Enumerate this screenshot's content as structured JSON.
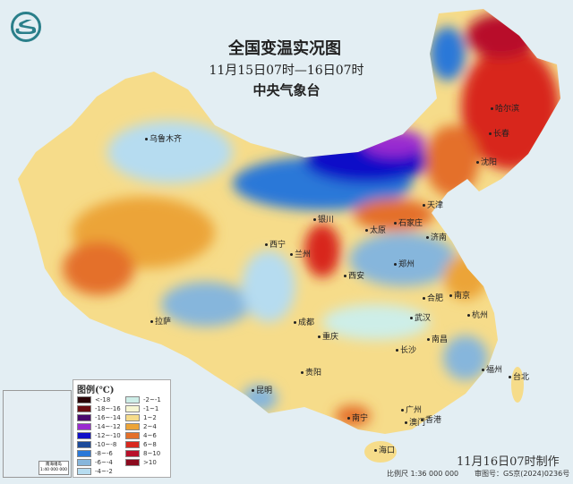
{
  "header": {
    "title": "全国变温实况图",
    "period": "11月15日07时—16日07时",
    "agency": "中央气象台"
  },
  "logo": {
    "icon": "cma-dragon-logo-icon"
  },
  "cities": [
    "乌鲁木齐",
    "哈尔滨",
    "长春",
    "沈阳",
    "银川",
    "太原",
    "石家庄",
    "天津",
    "济南",
    "西宁",
    "兰州",
    "郑州",
    "西安",
    "合肥",
    "南京",
    "杭州",
    "拉萨",
    "成都",
    "武汉",
    "重庆",
    "南昌",
    "长沙",
    "贵阳",
    "昆明",
    "福州",
    "台北",
    "广州",
    "南宁",
    "澳门",
    "香港",
    "海口"
  ],
  "legend": {
    "title": "图例(℃)",
    "items": [
      {
        "label": "<-18",
        "color": "#2a0508"
      },
      {
        "label": "-18~-16",
        "color": "#6b0d12"
      },
      {
        "label": "-16~-14",
        "color": "#4a0a6e"
      },
      {
        "label": "-14~-12",
        "color": "#9a2ad0"
      },
      {
        "label": "-12~-10",
        "color": "#1010c8"
      },
      {
        "label": "-10~-8",
        "color": "#1c4a9a"
      },
      {
        "label": "-8~-6",
        "color": "#2a78d8"
      },
      {
        "label": "-6~-4",
        "color": "#86b6dc"
      },
      {
        "label": "-4~-2",
        "color": "#b6dcf0"
      },
      {
        "label": "-2~-1",
        "color": "#cdeee8"
      },
      {
        "label": "-1~1",
        "color": "#f6f6d2"
      },
      {
        "label": "1~2",
        "color": "#f6dc8a"
      },
      {
        "label": "2~4",
        "color": "#eca438"
      },
      {
        "label": "4~6",
        "color": "#e4702a"
      },
      {
        "label": "6~8",
        "color": "#d8281e"
      },
      {
        "label": "8~10",
        "color": "#b8102a"
      },
      {
        "label": ">10",
        "color": "#8c0a1e"
      }
    ]
  },
  "inset": {
    "label": "南海诸岛",
    "scale": "1:40 000 000"
  },
  "footer": {
    "made": "11月16日07时制作",
    "scale": "比例尺 1:36 000 000",
    "review": "审图号：GS京(2024)0236号"
  }
}
